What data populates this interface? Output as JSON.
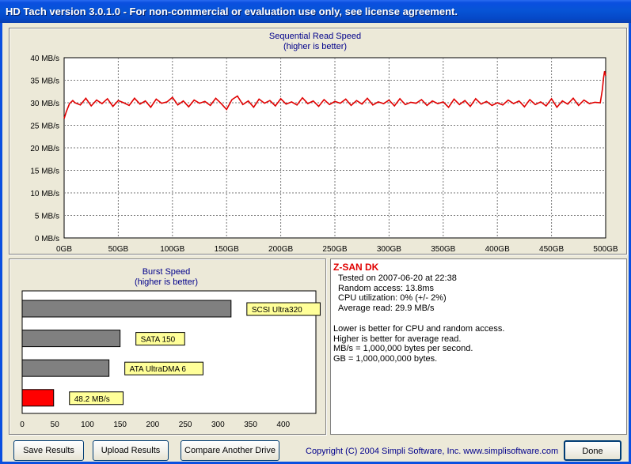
{
  "window": {
    "title": "HD Tach version 3.0.1.0  - For non-commercial or evaluation use only, see license agreement."
  },
  "seq_chart": {
    "title": "Sequential Read Speed",
    "subtitle": "(higher is better)",
    "y_ticks": [
      "40 MB/s",
      "35 MB/s",
      "30 MB/s",
      "25 MB/s",
      "20 MB/s",
      "15 MB/s",
      "10 MB/s",
      "5 MB/s",
      "0 MB/s"
    ],
    "x_ticks": [
      "0GB",
      "50GB",
      "100GB",
      "150GB",
      "200GB",
      "250GB",
      "300GB",
      "350GB",
      "400GB",
      "450GB",
      "500GB"
    ],
    "line_color": "#e00000"
  },
  "burst_chart": {
    "title": "Burst Speed",
    "subtitle": "(higher is better)",
    "x_ticks": [
      "0",
      "50",
      "100",
      "150",
      "200",
      "250",
      "300",
      "350",
      "400"
    ]
  },
  "chart_data": [
    {
      "type": "line",
      "title": "Sequential Read Speed",
      "subtitle": "(higher is better)",
      "xlabel": "",
      "ylabel": "",
      "xlim": [
        0,
        500
      ],
      "ylim": [
        0,
        40
      ],
      "x_unit": "GB",
      "y_unit": "MB/s",
      "grid": true,
      "series": [
        {
          "x": [
            0,
            2,
            5,
            8,
            10,
            15,
            20,
            25,
            30,
            35,
            40,
            45,
            50,
            55,
            60,
            65,
            70,
            75,
            80,
            85,
            90,
            95,
            100,
            105,
            110,
            115,
            120,
            125,
            130,
            135,
            140,
            145,
            150,
            155,
            160,
            165,
            170,
            175,
            180,
            185,
            190,
            195,
            200,
            205,
            210,
            215,
            220,
            225,
            230,
            235,
            240,
            245,
            250,
            255,
            260,
            265,
            270,
            275,
            280,
            285,
            290,
            295,
            300,
            305,
            310,
            315,
            320,
            325,
            330,
            335,
            340,
            345,
            350,
            355,
            360,
            365,
            370,
            375,
            380,
            385,
            390,
            395,
            400,
            405,
            410,
            415,
            420,
            425,
            430,
            435,
            440,
            445,
            450,
            455,
            460,
            465,
            470,
            475,
            480,
            485,
            490,
            495,
            497,
            498,
            499,
            500
          ],
          "y": [
            26.5,
            28.0,
            29.8,
            30.5,
            30.0,
            29.5,
            31.0,
            29.3,
            30.6,
            29.8,
            30.9,
            29.2,
            30.5,
            30.0,
            29.4,
            31.0,
            29.7,
            30.4,
            29.0,
            30.8,
            29.9,
            30.2,
            31.2,
            29.5,
            30.4,
            29.1,
            30.6,
            29.9,
            30.3,
            29.4,
            31.0,
            29.8,
            28.5,
            30.7,
            31.5,
            29.6,
            30.4,
            29.0,
            30.8,
            29.9,
            30.5,
            29.3,
            30.9,
            29.7,
            30.2,
            29.5,
            31.1,
            29.8,
            30.4,
            29.2,
            30.7,
            29.6,
            30.3,
            29.9,
            30.8,
            29.4,
            30.5,
            29.7,
            31.0,
            29.5,
            30.2,
            29.8,
            30.6,
            29.3,
            30.9,
            29.6,
            30.1,
            29.9,
            30.7,
            29.4,
            30.4,
            29.8,
            30.2,
            29.0,
            30.8,
            29.6,
            30.5,
            29.2,
            30.9,
            29.7,
            30.3,
            29.4,
            30.0,
            29.5,
            30.6,
            29.8,
            30.4,
            29.1,
            30.7,
            29.6,
            30.2,
            29.3,
            30.9,
            29.0,
            30.4,
            29.7,
            31.0,
            29.4,
            30.6,
            29.8,
            30.1,
            30.0,
            33.0,
            35.5,
            37.0,
            36.0
          ],
          "color": "#e00000"
        }
      ]
    },
    {
      "type": "bar",
      "title": "Burst Speed",
      "subtitle": "(higher is better)",
      "orientation": "horizontal",
      "xlim": [
        0,
        450
      ],
      "categories": [
        "SCSI Ultra320",
        "SATA 150",
        "ATA UltraDMA 6",
        "48.2 MB/s"
      ],
      "values": [
        320,
        150,
        133,
        48.2
      ],
      "colors": [
        "#808080",
        "#808080",
        "#808080",
        "#ff0000"
      ]
    }
  ],
  "info": {
    "drive_name": "Z-SAN DK",
    "tested_on": "Tested on 2007-06-20 at 22:38",
    "random_access": "Random access: 13.8ms",
    "cpu": "CPU utilization: 0% (+/- 2%)",
    "avg_read": "Average read: 29.9 MB/s",
    "note1": "Lower is better for CPU and random access.",
    "note2": "Higher is better for average read.",
    "note3": "MB/s = 1,000,000 bytes per second.",
    "note4": "GB = 1,000,000,000 bytes."
  },
  "buttons": {
    "save": "Save Results",
    "upload": "Upload Results",
    "compare": "Compare Another Drive",
    "done": "Done"
  },
  "copyright": "Copyright (C) 2004 Simpli Software, Inc. www.simplisoftware.com"
}
